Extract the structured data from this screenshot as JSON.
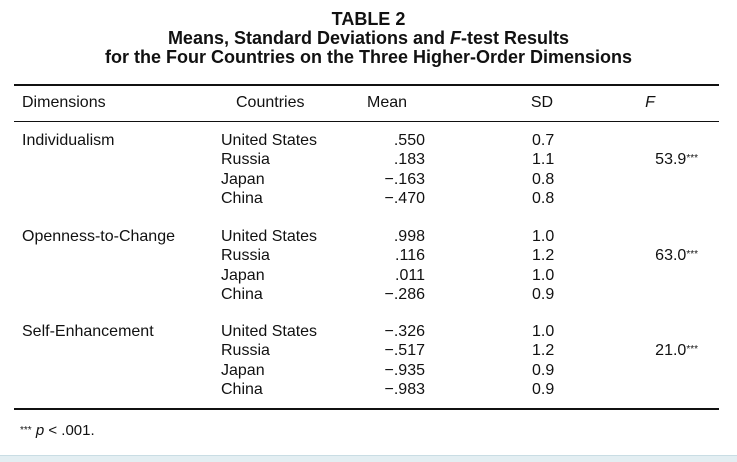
{
  "title": {
    "line1": "TABLE 2",
    "line2_prefix": "Means, Standard Deviations and ",
    "line2_italic": "F",
    "line2_suffix": "-test Results",
    "line3": "for the Four Countries on the Three Higher-Order Dimensions"
  },
  "columns": {
    "dimensions": "Dimensions",
    "countries": "Countries",
    "mean": "Mean",
    "sd": "SD",
    "f": "F"
  },
  "groups": [
    {
      "dimension": "Individualism",
      "f_value": "53.9",
      "f_stars": "***",
      "rows": [
        {
          "country": "United States",
          "mean": ".550",
          "sd": "0.7"
        },
        {
          "country": "Russia",
          "mean": ".183",
          "sd": "1.1"
        },
        {
          "country": "Japan",
          "mean": "−.163",
          "sd": "0.8"
        },
        {
          "country": "China",
          "mean": "−.470",
          "sd": "0.8"
        }
      ]
    },
    {
      "dimension": "Openness-to-Change",
      "f_value": "63.0",
      "f_stars": "***",
      "rows": [
        {
          "country": "United States",
          "mean": ".998",
          "sd": "1.0"
        },
        {
          "country": "Russia",
          "mean": ".116",
          "sd": "1.2"
        },
        {
          "country": "Japan",
          "mean": ".011",
          "sd": "1.0"
        },
        {
          "country": "China",
          "mean": "−.286",
          "sd": "0.9"
        }
      ]
    },
    {
      "dimension": "Self-Enhancement",
      "f_value": "21.0",
      "f_stars": "***",
      "rows": [
        {
          "country": "United States",
          "mean": "−.326",
          "sd": "1.0"
        },
        {
          "country": "Russia",
          "mean": "−.517",
          "sd": "1.2"
        },
        {
          "country": "Japan",
          "mean": "−.935",
          "sd": "0.9"
        },
        {
          "country": "China",
          "mean": "−.983",
          "sd": "0.9"
        }
      ]
    }
  ],
  "footnote": {
    "stars": "***",
    "p_symbol": "p",
    "text": " < .001."
  }
}
